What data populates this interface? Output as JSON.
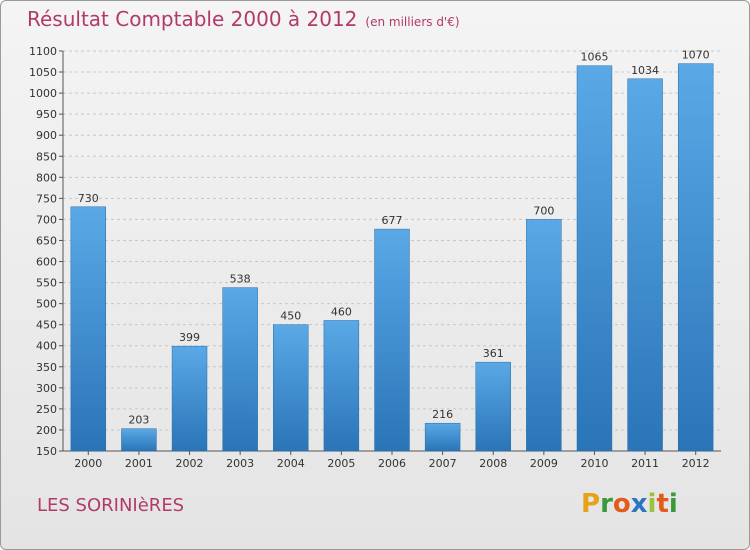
{
  "title": "Résultat Comptable 2000 à 2012",
  "subtitle": "(en milliers d'€)",
  "place": "LES SORINIèRES",
  "brand": {
    "letters": [
      "P",
      "r",
      "o",
      "x",
      "i",
      "t",
      "i"
    ],
    "colors": [
      "#e8a21a",
      "#3a9a3a",
      "#e45a1c",
      "#2b76c2",
      "#9ac23a",
      "#e45a1c",
      "#3a9a3a"
    ]
  },
  "colors": {
    "bar": "#3b8fd6",
    "bar_light": "#5aa9e6",
    "bar_dark": "#2a74b8",
    "title": "#b23a6b"
  },
  "chart_data": {
    "type": "bar",
    "title": "Résultat Comptable 2000 à 2012",
    "xlabel": "",
    "ylabel": "",
    "ylim": [
      150,
      1100
    ],
    "yticks": [
      150,
      200,
      250,
      300,
      350,
      400,
      450,
      500,
      550,
      600,
      650,
      700,
      750,
      800,
      850,
      900,
      950,
      1000,
      1050,
      1100
    ],
    "grid": true,
    "categories": [
      "2000",
      "2001",
      "2002",
      "2003",
      "2004",
      "2005",
      "2006",
      "2007",
      "2008",
      "2009",
      "2010",
      "2011",
      "2012"
    ],
    "values": [
      730,
      203,
      399,
      538,
      450,
      460,
      677,
      216,
      361,
      700,
      1065,
      1034,
      1070
    ]
  }
}
